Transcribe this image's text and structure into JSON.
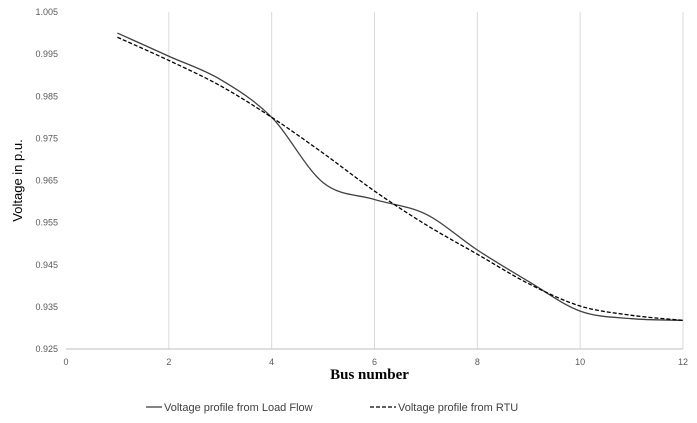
{
  "chart_data": {
    "type": "line",
    "xlabel": "Bus number",
    "ylabel": "Voltage in p.u.",
    "xlim": [
      0,
      12
    ],
    "ylim": [
      0.925,
      1.005
    ],
    "xticks": [
      0,
      2,
      4,
      6,
      8,
      10,
      12
    ],
    "yticks": [
      0.925,
      0.935,
      0.945,
      0.955,
      0.965,
      0.975,
      0.985,
      0.995,
      1.005
    ],
    "grid": "vertical",
    "legend": "bottom",
    "series": [
      {
        "name": "Voltage profile from Load Flow",
        "style": "solid",
        "color": "#404040",
        "x": [
          1,
          2,
          3,
          4,
          5,
          6,
          7,
          8,
          9,
          10,
          11,
          12
        ],
        "y": [
          1.0,
          0.9945,
          0.989,
          0.98,
          0.9645,
          0.9605,
          0.957,
          0.9485,
          0.941,
          0.934,
          0.9322,
          0.9318
        ]
      },
      {
        "name": "Voltage profile from RTU",
        "style": "dashed",
        "color": "#000000",
        "x": [
          1,
          2,
          3,
          4,
          5,
          6,
          7,
          8,
          9,
          10,
          11,
          12
        ],
        "y": [
          0.999,
          0.9935,
          0.9875,
          0.98,
          0.9715,
          0.9625,
          0.9545,
          0.9475,
          0.9405,
          0.9352,
          0.933,
          0.9318
        ]
      }
    ]
  }
}
